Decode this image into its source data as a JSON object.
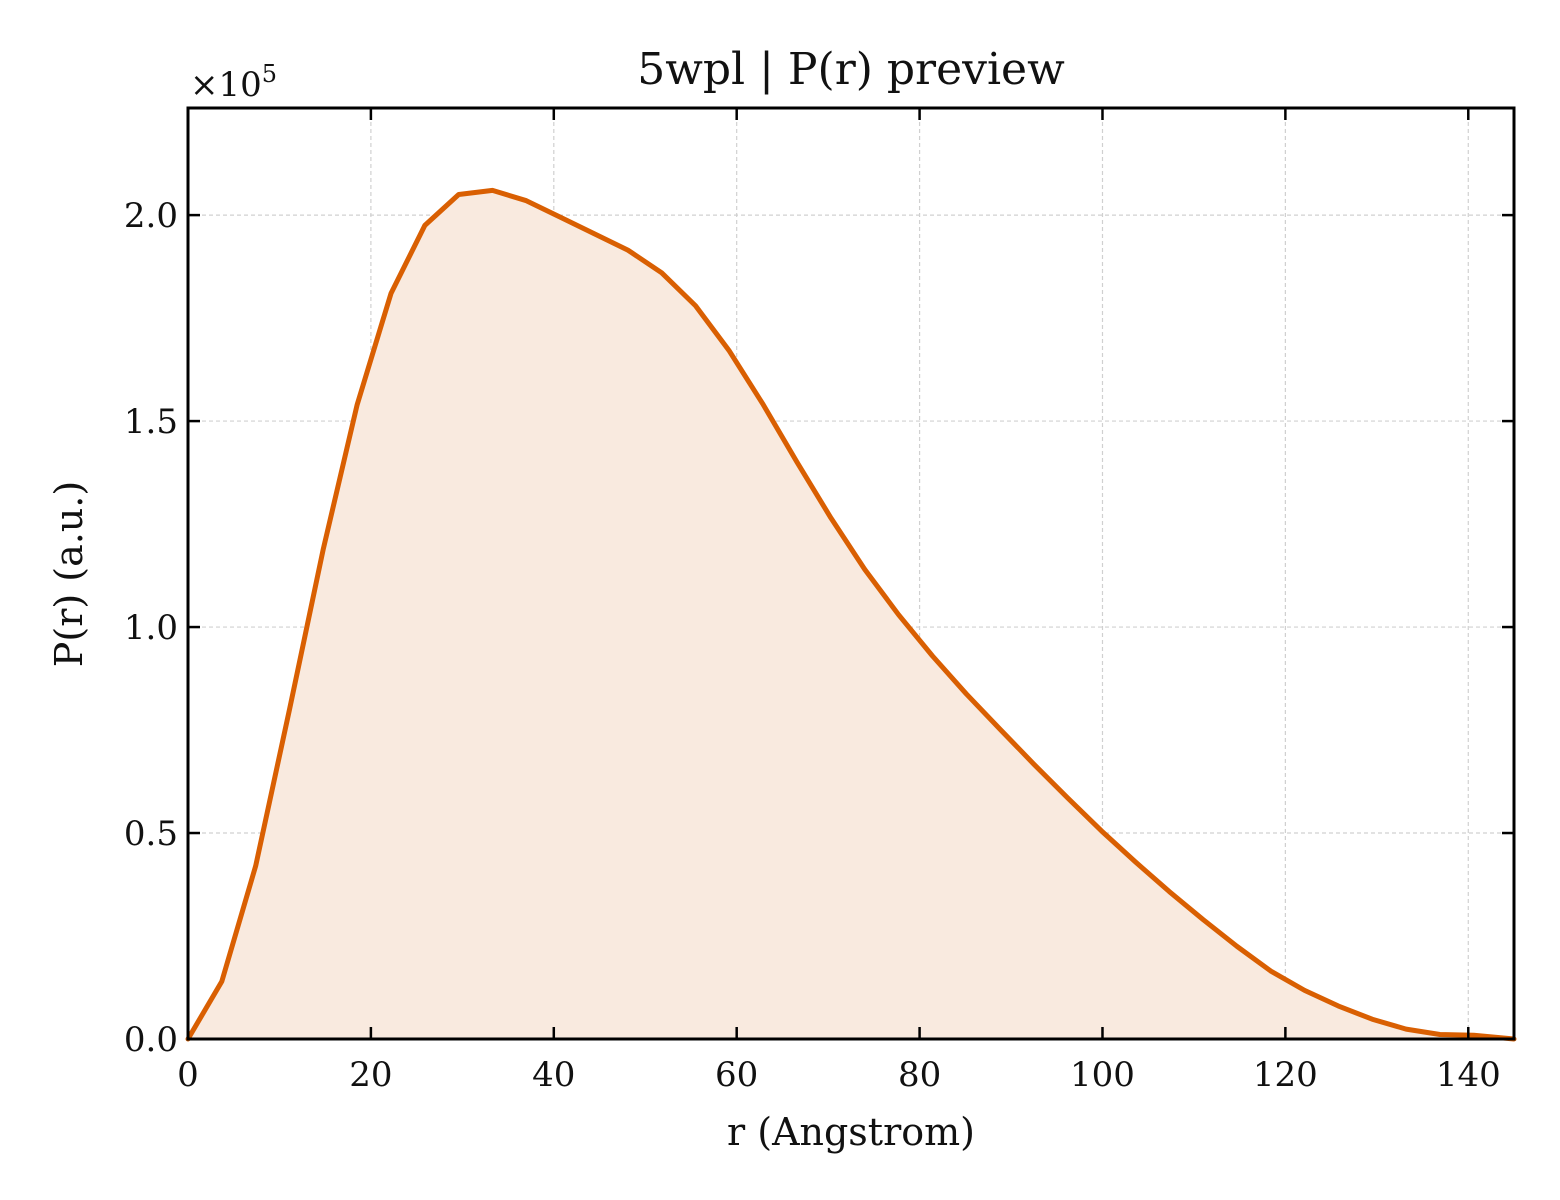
{
  "chart_data": {
    "type": "area",
    "title": "5wpl | P(r) preview",
    "xlabel": "r (Angstrom)",
    "ylabel": "P(r) (a.u.)",
    "y_offset_label": {
      "prefix": "×10",
      "exponent": "5"
    },
    "xlim": [
      0,
      145
    ],
    "ylim": [
      0,
      2.26
    ],
    "y_scale_multiplier": 100000,
    "grid": true,
    "line_color": "#d95f02",
    "fill_color": "#f9eadf",
    "x_ticks": [
      {
        "value": 0,
        "label": "0"
      },
      {
        "value": 20,
        "label": "20"
      },
      {
        "value": 40,
        "label": "40"
      },
      {
        "value": 60,
        "label": "60"
      },
      {
        "value": 80,
        "label": "80"
      },
      {
        "value": 100,
        "label": "100"
      },
      {
        "value": 120,
        "label": "120"
      },
      {
        "value": 140,
        "label": "140"
      }
    ],
    "y_ticks": [
      {
        "value": 0.0,
        "label": "0.0"
      },
      {
        "value": 0.5,
        "label": "0.5"
      },
      {
        "value": 1.0,
        "label": "1.0"
      },
      {
        "value": 1.5,
        "label": "1.5"
      },
      {
        "value": 2.0,
        "label": "2.0"
      }
    ],
    "series": [
      {
        "x": [
          0,
          3.7,
          7.4,
          11.1,
          14.8,
          18.5,
          22.2,
          25.9,
          29.6,
          33.3,
          37.0,
          40.7,
          44.4,
          48.1,
          51.8,
          55.5,
          59.2,
          62.9,
          66.6,
          70.3,
          74.0,
          77.7,
          81.4,
          85.1,
          88.8,
          92.5,
          96.2,
          99.9,
          103.6,
          107.3,
          111.0,
          114.7,
          118.4,
          122.1,
          125.8,
          129.5,
          133.2,
          136.9,
          140.6,
          145.0
        ],
        "y": [
          0.0,
          0.14,
          0.42,
          0.8,
          1.19,
          1.54,
          1.81,
          1.975,
          2.05,
          2.06,
          2.035,
          1.995,
          1.955,
          1.915,
          1.86,
          1.78,
          1.67,
          1.54,
          1.4,
          1.265,
          1.14,
          1.03,
          0.93,
          0.838,
          0.752,
          0.667,
          0.585,
          0.505,
          0.43,
          0.358,
          0.29,
          0.225,
          0.165,
          0.118,
          0.08,
          0.048,
          0.024,
          0.011,
          0.009,
          0.0
        ]
      }
    ]
  }
}
